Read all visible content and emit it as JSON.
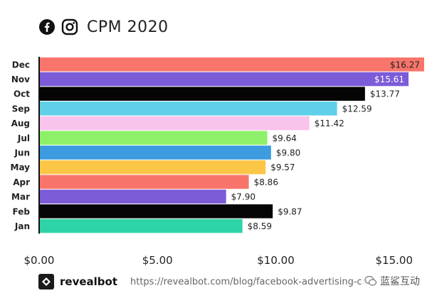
{
  "header": {
    "title": "CPM 2020",
    "icons": [
      "facebook-icon",
      "instagram-icon"
    ]
  },
  "chart_data": {
    "type": "bar",
    "orientation": "horizontal",
    "categories": [
      "Dec",
      "Nov",
      "Oct",
      "Sep",
      "Aug",
      "Jul",
      "Jun",
      "May",
      "Apr",
      "Mar",
      "Feb",
      "Jan"
    ],
    "values": [
      16.27,
      15.61,
      13.77,
      12.59,
      11.42,
      9.64,
      9.8,
      9.57,
      8.86,
      7.9,
      9.87,
      8.59
    ],
    "value_labels": [
      "$16.27",
      "$15.61",
      "$13.77",
      "$12.59",
      "$11.42",
      "$9.64",
      "$9.80",
      "$9.57",
      "$8.86",
      "$7.90",
      "$9.87",
      "$8.59"
    ],
    "colors": [
      "#f8756b",
      "#7b5bd8",
      "#050505",
      "#5fd0e8",
      "#f9c3ec",
      "#8ef06a",
      "#3d9be0",
      "#fcc647",
      "#f8756b",
      "#7b5bd8",
      "#050505",
      "#2ed3a6"
    ],
    "xlim": [
      0,
      16.27
    ],
    "xticks": [
      0,
      5,
      10,
      15
    ],
    "xtick_labels": [
      "$0.00",
      "$5.00",
      "$10.00",
      "$15.00"
    ],
    "title": "CPM 2020",
    "xlabel": "",
    "ylabel": "",
    "grid": false
  },
  "footer": {
    "brand": "revealbot",
    "source": "https://revealbot.com/blog/facebook-advertising-co",
    "watermark": "蓝鲨互动"
  }
}
